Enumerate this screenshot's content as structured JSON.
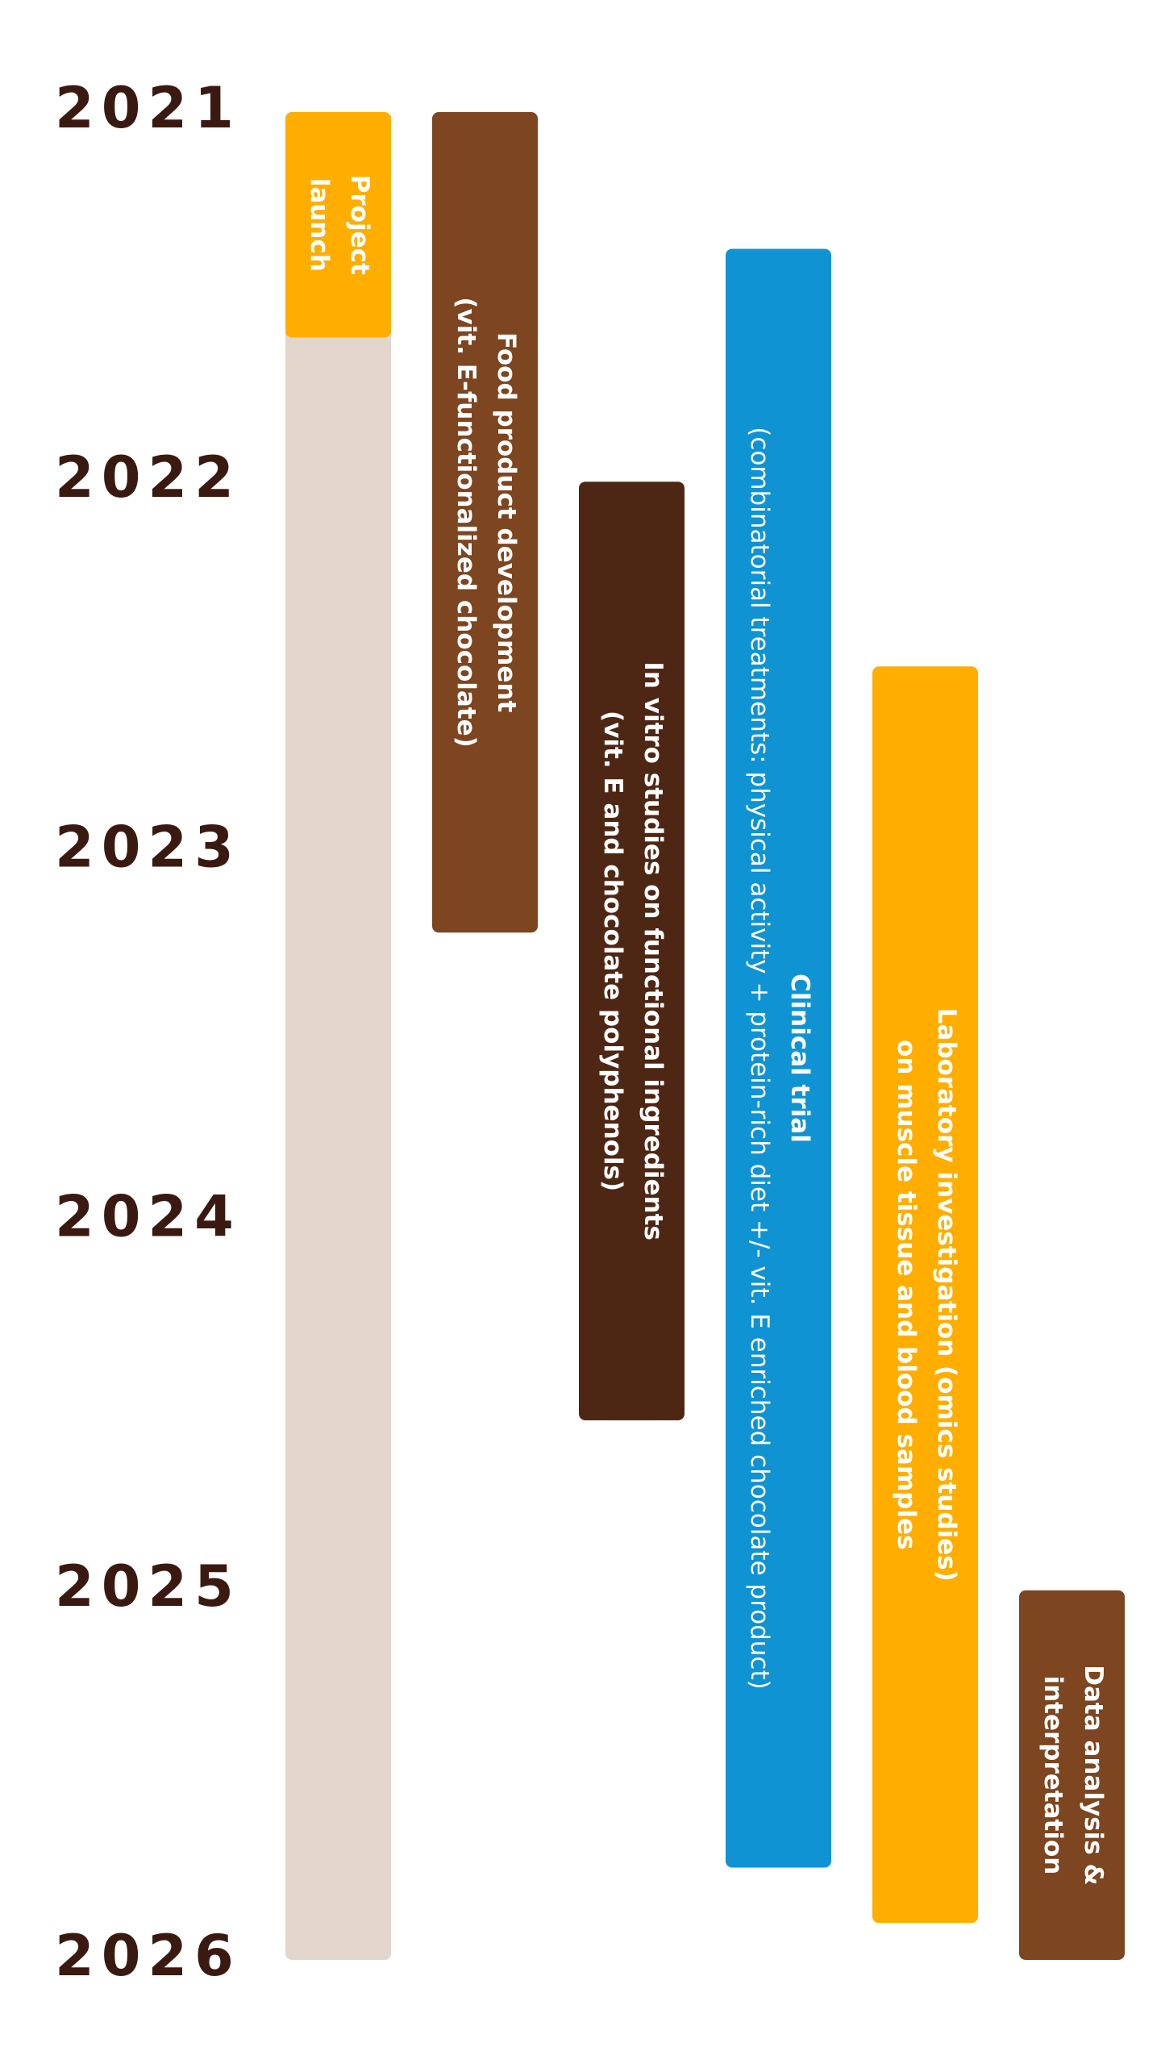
{
  "chart_data": {
    "type": "timeline",
    "ylim": [
      2021,
      2026
    ],
    "yticks": [
      2021,
      2022,
      2023,
      2024,
      2025,
      2026
    ],
    "track_color": "#e2d6cd",
    "tasks": [
      {
        "lines": [
          "Project",
          "launch"
        ],
        "start": 2021.0,
        "end": 2021.61,
        "color": "#ffae00"
      },
      {
        "lines": [
          "Food product development",
          "(vit. E-functionalized chocolate)"
        ],
        "start": 2021.0,
        "end": 2023.22,
        "color": "#7d4520"
      },
      {
        "lines": [
          "In vitro studies on functional ingredients",
          "(vit. E and chocolate polyphenols)"
        ],
        "start": 2022.0,
        "end": 2024.54,
        "color": "#4e2714"
      },
      {
        "lines": [
          "Clinical trial",
          "(combinatorial treatments: physical activity + protein-rich diet +/- vit. E enriched chocolate product)"
        ],
        "start": 2021.37,
        "end": 2025.75,
        "color": "#0f93d2"
      },
      {
        "lines": [
          "Laboratory investigation (omics studies)",
          "on muscle tissue and blood samples"
        ],
        "start": 2022.5,
        "end": 2025.9,
        "color": "#ffae00"
      },
      {
        "lines": [
          "Data analysis &",
          "interpretation"
        ],
        "start": 2025.0,
        "end": 2026.0,
        "color": "#7d4520"
      }
    ]
  }
}
